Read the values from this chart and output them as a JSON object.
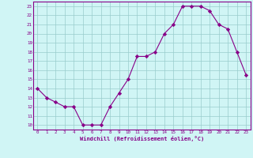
{
  "x": [
    0,
    1,
    2,
    3,
    4,
    5,
    6,
    7,
    8,
    9,
    10,
    11,
    12,
    13,
    14,
    15,
    16,
    17,
    18,
    19,
    20,
    21,
    22,
    23
  ],
  "y": [
    14,
    13,
    12.5,
    12,
    12,
    10,
    10,
    10,
    12,
    13.5,
    15,
    17.5,
    17.5,
    18,
    20,
    21,
    23,
    23,
    23,
    22.5,
    21,
    20.5,
    18,
    15.5
  ],
  "line_color": "#880088",
  "marker": "D",
  "marker_size": 2.2,
  "bg_color": "#d0f5f5",
  "grid_color": "#99cccc",
  "xlabel": "Windchill (Refroidissement éolien,°C)",
  "xlabel_color": "#880088",
  "tick_color": "#880088",
  "spine_color": "#880088",
  "xlim": [
    -0.5,
    23.5
  ],
  "ylim": [
    9.5,
    23.5
  ],
  "yticks": [
    10,
    11,
    12,
    13,
    14,
    15,
    16,
    17,
    18,
    19,
    20,
    21,
    22,
    23
  ],
  "xticks": [
    0,
    1,
    2,
    3,
    4,
    5,
    6,
    7,
    8,
    9,
    10,
    11,
    12,
    13,
    14,
    15,
    16,
    17,
    18,
    19,
    20,
    21,
    22,
    23
  ]
}
